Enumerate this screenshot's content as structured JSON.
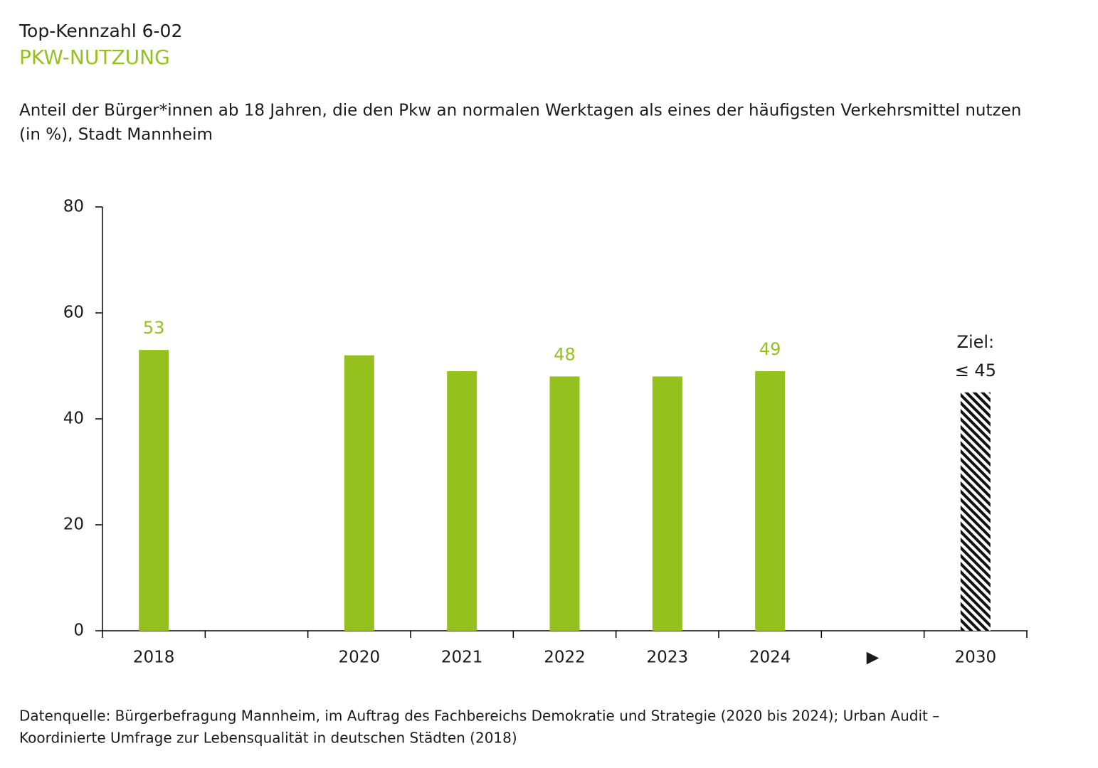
{
  "chart_data": {
    "type": "bar",
    "kicker": "Top-Kennzahl 6-02",
    "title": "PKW-NUTZUNG",
    "subtitle": [
      "Anteil der Bürger*innen ab 18 Jahren, die den Pkw an normalen Werktagen als eines der häufigsten Verkehrsmittel nutzen",
      "(in %), Stadt Mannheim"
    ],
    "categories": [
      "2018",
      null,
      "2020",
      "2021",
      "2022",
      "2023",
      "2024",
      "▶",
      "2030"
    ],
    "values": [
      53,
      null,
      52,
      49,
      48,
      48,
      49,
      null,
      45
    ],
    "value_labels": [
      "53",
      null,
      null,
      null,
      "48",
      null,
      "49",
      null,
      "≤ 45"
    ],
    "annotation": "Ziel:",
    "hatch_index": 8,
    "color": "#95c11f",
    "ylim": [
      0,
      80
    ],
    "yticks": [
      0,
      20,
      40,
      60,
      80
    ],
    "source": [
      "Datenquelle: Bürgerbefragung Mannheim, im Auftrag des Fachbereichs Demokratie und Strategie (2020 bis 2024); Urban Audit –",
      "Koordinierte Umfrage zur Lebensqualität in deutschen Städten (2018)"
    ]
  }
}
